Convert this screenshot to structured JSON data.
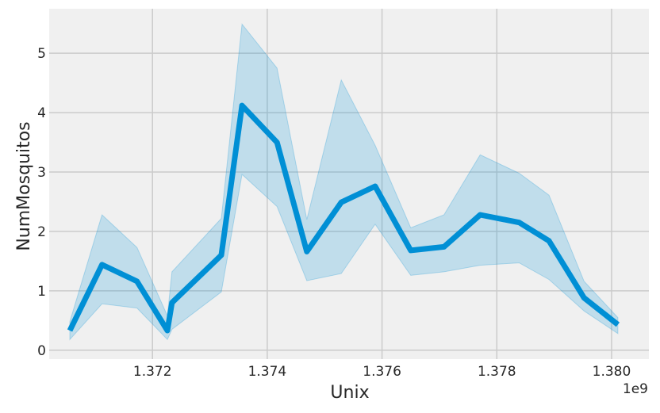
{
  "chart_data": {
    "type": "line",
    "title": "",
    "xlabel": "Unix",
    "ylabel": "NumMosquitos",
    "x_offset_label": "1e9",
    "xlim": [
      1370200000,
      1380650000
    ],
    "ylim": [
      -0.15,
      5.75
    ],
    "xticks": [
      1372000000,
      1374000000,
      1376000000,
      1378000000,
      1380000000
    ],
    "xtick_labels": [
      "1.372",
      "1.374",
      "1.376",
      "1.378",
      "1.380"
    ],
    "yticks": [
      0,
      1,
      2,
      3,
      4,
      5
    ],
    "ytick_labels": [
      "0",
      "1",
      "2",
      "3",
      "4",
      "5"
    ],
    "grid": true,
    "series": [
      {
        "color": "#008fd5",
        "points": [
          {
            "x": 1370560000,
            "y": 0.33,
            "lo": 0.18,
            "hi": 0.48
          },
          {
            "x": 1371120000,
            "y": 1.44,
            "lo": 0.78,
            "hi": 2.28
          },
          {
            "x": 1371730000,
            "y": 1.16,
            "lo": 0.71,
            "hi": 1.73
          },
          {
            "x": 1372260000,
            "y": 0.33,
            "lo": 0.18,
            "hi": 0.58
          },
          {
            "x": 1372340000,
            "y": 0.8,
            "lo": 0.35,
            "hi": 1.32
          },
          {
            "x": 1373200000,
            "y": 1.6,
            "lo": 0.98,
            "hi": 2.22
          },
          {
            "x": 1373560000,
            "y": 4.12,
            "lo": 2.96,
            "hi": 5.49
          },
          {
            "x": 1374170000,
            "y": 3.5,
            "lo": 2.42,
            "hi": 4.75
          },
          {
            "x": 1374690000,
            "y": 1.66,
            "lo": 1.17,
            "hi": 2.2
          },
          {
            "x": 1375290000,
            "y": 2.49,
            "lo": 1.29,
            "hi": 4.55
          },
          {
            "x": 1375880000,
            "y": 2.76,
            "lo": 2.12,
            "hi": 3.45
          },
          {
            "x": 1376500000,
            "y": 1.68,
            "lo": 1.26,
            "hi": 2.06
          },
          {
            "x": 1377080000,
            "y": 1.74,
            "lo": 1.32,
            "hi": 2.28
          },
          {
            "x": 1377710000,
            "y": 2.28,
            "lo": 1.43,
            "hi": 3.29
          },
          {
            "x": 1378390000,
            "y": 2.15,
            "lo": 1.47,
            "hi": 2.98
          },
          {
            "x": 1378910000,
            "y": 1.84,
            "lo": 1.19,
            "hi": 2.61
          },
          {
            "x": 1379520000,
            "y": 0.88,
            "lo": 0.66,
            "hi": 1.16
          },
          {
            "x": 1380110000,
            "y": 0.43,
            "lo": 0.28,
            "hi": 0.55
          }
        ]
      }
    ]
  }
}
